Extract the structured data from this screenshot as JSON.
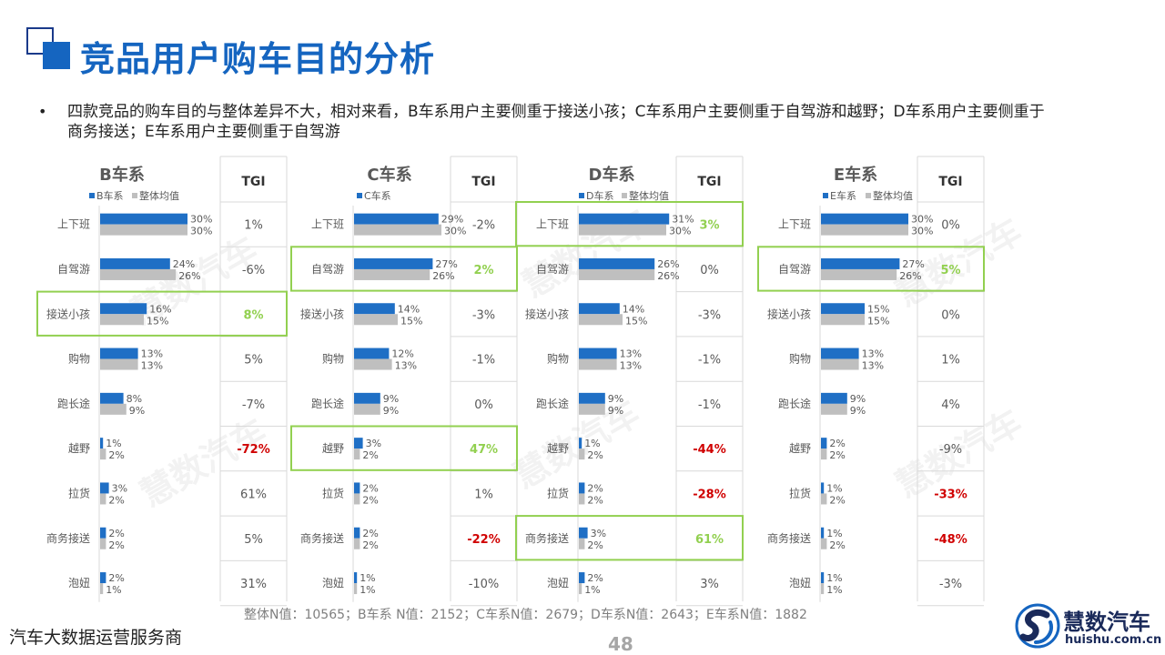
{
  "title": "竞品用户购车目的分析",
  "bullet": "四款竞品的购车目的与整体差异不大，相对来看，B车系用户主要侧重于接送小孩；C车系用户主要侧重于自驾游和越野；D车系用户主要侧重于商务接送；E车系用户主要侧重于自驾游",
  "footer_note": "整体N值：10565；B车系 N值：2152；C车系N值：2679；D车系N值：2643；E车系N值：1882",
  "bottom_left": "汽车大数据运营服务商",
  "page_number": "48",
  "logo": {
    "name": "慧数汽车",
    "domain": "huishu.com.cn"
  },
  "watermark": "慧数汽车",
  "colors": {
    "series": "#1f6fc5",
    "overall": "#bfbfbf",
    "highlight": "#92d050",
    "negative": "#d00000"
  },
  "tgi_header": "TGI",
  "chart_data": [
    {
      "type": "bar",
      "title": "B车系",
      "categories": [
        "上下班",
        "自驾游",
        "接送小孩",
        "购物",
        "跑长途",
        "越野",
        "拉货",
        "商务接送",
        "泡妞"
      ],
      "series": [
        {
          "name": "B车系",
          "values": [
            30,
            24,
            16,
            13,
            8,
            1,
            3,
            2,
            2
          ]
        },
        {
          "name": "整体均值",
          "values": [
            30,
            26,
            15,
            13,
            9,
            2,
            2,
            2,
            1
          ]
        }
      ],
      "tgi": [
        "1%",
        "-6%",
        "8%",
        "5%",
        "-7%",
        "-72%",
        "61%",
        "5%",
        "31%"
      ],
      "highlight": [
        "接送小孩"
      ],
      "ylim": [
        0,
        30
      ]
    },
    {
      "type": "bar",
      "title": "C车系",
      "categories": [
        "上下班",
        "自驾游",
        "接送小孩",
        "购物",
        "跑长途",
        "越野",
        "拉货",
        "商务接送",
        "泡妞"
      ],
      "series": [
        {
          "name": "C车系",
          "values": [
            29,
            27,
            14,
            12,
            9,
            3,
            2,
            2,
            1
          ]
        },
        {
          "values": [
            30,
            26,
            15,
            13,
            9,
            2,
            2,
            2,
            1
          ]
        }
      ],
      "tgi": [
        "-2%",
        "2%",
        "-3%",
        "-1%",
        "0%",
        "47%",
        "1%",
        "-22%",
        "-10%"
      ],
      "highlight": [
        "自驾游",
        "越野"
      ],
      "ylim": [
        0,
        30
      ]
    },
    {
      "type": "bar",
      "title": "D车系",
      "categories": [
        "上下班",
        "自驾游",
        "接送小孩",
        "购物",
        "跑长途",
        "越野",
        "拉货",
        "商务接送",
        "泡妞"
      ],
      "series": [
        {
          "name": "D车系",
          "values": [
            31,
            26,
            14,
            13,
            9,
            1,
            2,
            3,
            2
          ]
        },
        {
          "name": "整体均值",
          "values": [
            30,
            26,
            15,
            13,
            9,
            2,
            2,
            2,
            1
          ]
        }
      ],
      "tgi": [
        "3%",
        "0%",
        "-3%",
        "-1%",
        "-1%",
        "-44%",
        "-28%",
        "61%",
        "3%"
      ],
      "highlight": [
        "上下班",
        "商务接送"
      ],
      "ylim": [
        0,
        30
      ]
    },
    {
      "type": "bar",
      "title": "E车系",
      "categories": [
        "上下班",
        "自驾游",
        "接送小孩",
        "购物",
        "跑长途",
        "越野",
        "拉货",
        "商务接送",
        "泡妞"
      ],
      "series": [
        {
          "name": "E车系",
          "values": [
            30,
            27,
            15,
            13,
            9,
            2,
            1,
            1,
            1
          ]
        },
        {
          "name": "整体均值",
          "values": [
            30,
            26,
            15,
            13,
            9,
            2,
            2,
            2,
            1
          ]
        }
      ],
      "tgi": [
        "0%",
        "5%",
        "0%",
        "1%",
        "4%",
        "-9%",
        "-33%",
        "-48%",
        "-3%"
      ],
      "highlight": [
        "自驾游"
      ],
      "ylim": [
        0,
        30
      ]
    }
  ]
}
